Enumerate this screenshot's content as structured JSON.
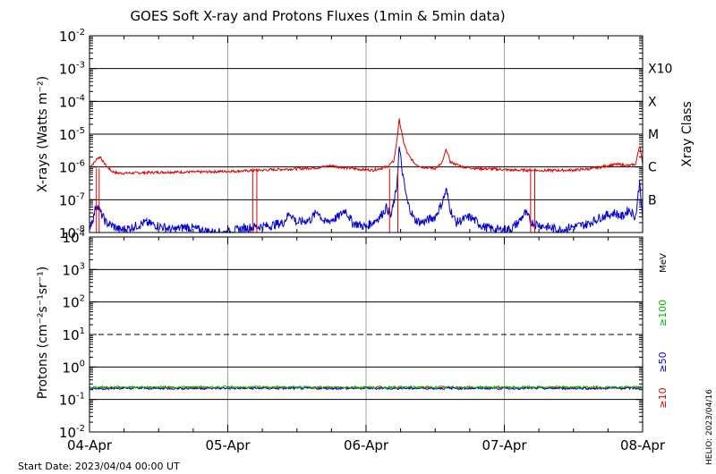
{
  "chart_data": [
    {
      "type": "line",
      "title": "GOES Soft X-ray and Protons Fluxes   (1min & 5min data)",
      "ylabel": "X-rays (Watts m⁻²)",
      "yscale": "log",
      "ylim": [
        1e-08,
        0.01
      ],
      "y_ticks": [
        {
          "base": "10",
          "exp": "-8"
        },
        {
          "base": "10",
          "exp": "-7"
        },
        {
          "base": "10",
          "exp": "-6"
        },
        {
          "base": "10",
          "exp": "-5"
        },
        {
          "base": "10",
          "exp": "-4"
        },
        {
          "base": "10",
          "exp": "-3"
        },
        {
          "base": "10",
          "exp": "-2"
        }
      ],
      "right_axis_label": "Xray Class",
      "class_labels": [
        {
          "label": "B",
          "value": 1e-07
        },
        {
          "label": "C",
          "value": 1e-06
        },
        {
          "label": "M",
          "value": 1e-05
        },
        {
          "label": "X",
          "value": 0.0001
        },
        {
          "label": "X10",
          "value": 0.001
        }
      ],
      "x_unit": "days since 04-Apr 00:00 UT",
      "series": [
        {
          "color": "#e00000",
          "points": [
            [
              0.0,
              1e-06
            ],
            [
              0.03,
              1.3e-06
            ],
            [
              0.06,
              1.9e-06
            ],
            [
              0.08,
              2e-06
            ],
            [
              0.1,
              1.4e-06
            ],
            [
              0.12,
              1.1e-06
            ],
            [
              0.14,
              9e-07
            ],
            [
              0.16,
              7.5e-07
            ],
            [
              0.2,
              6.5e-07
            ],
            [
              0.3,
              6.5e-07
            ],
            [
              0.45,
              6.8e-07
            ],
            [
              0.6,
              7e-07
            ],
            [
              0.8,
              7e-07
            ],
            [
              0.95,
              7.3e-07
            ],
            [
              1.1,
              7.5e-07
            ],
            [
              1.25,
              8e-07
            ],
            [
              1.4,
              8.5e-07
            ],
            [
              1.55,
              9e-07
            ],
            [
              1.65,
              9.5e-07
            ],
            [
              1.75,
              1.1e-06
            ],
            [
              1.8,
              1e-06
            ],
            [
              1.95,
              8.5e-07
            ],
            [
              2.05,
              8e-07
            ],
            [
              2.15,
              1e-06
            ],
            [
              2.2,
              1.5e-06
            ],
            [
              2.22,
              5e-06
            ],
            [
              2.24,
              2.8e-05
            ],
            [
              2.27,
              6e-06
            ],
            [
              2.3,
              2.5e-06
            ],
            [
              2.35,
              1.3e-06
            ],
            [
              2.4,
              1e-06
            ],
            [
              2.5,
              9e-07
            ],
            [
              2.55,
              1.3e-06
            ],
            [
              2.58,
              3.5e-06
            ],
            [
              2.61,
              1.4e-06
            ],
            [
              2.7,
              1e-06
            ],
            [
              2.8,
              9e-07
            ],
            [
              2.95,
              8.5e-07
            ],
            [
              3.05,
              8e-07
            ],
            [
              3.15,
              8e-07
            ],
            [
              3.3,
              7.8e-07
            ],
            [
              3.5,
              8e-07
            ],
            [
              3.65,
              9e-07
            ],
            [
              3.75,
              1.1e-06
            ],
            [
              3.82,
              1.2e-06
            ],
            [
              3.9,
              1.1e-06
            ],
            [
              3.95,
              1.2e-06
            ],
            [
              3.98,
              5e-06
            ],
            [
              4.0,
              1.1e-06
            ]
          ]
        },
        {
          "color": "#0000d0",
          "points": [
            [
              0.0,
              1.5e-08
            ],
            [
              0.03,
              3e-08
            ],
            [
              0.05,
              8e-08
            ],
            [
              0.08,
              4e-08
            ],
            [
              0.12,
              2e-08
            ],
            [
              0.18,
              1.5e-08
            ],
            [
              0.22,
              1.2e-08
            ],
            [
              0.3,
              1.4e-08
            ],
            [
              0.4,
              2e-08
            ],
            [
              0.5,
              1.6e-08
            ],
            [
              0.6,
              1.2e-08
            ],
            [
              0.7,
              1.5e-08
            ],
            [
              0.8,
              1.2e-08
            ],
            [
              0.9,
              1e-08
            ],
            [
              1.0,
              1e-08
            ],
            [
              1.1,
              1.3e-08
            ],
            [
              1.2,
              1.5e-08
            ],
            [
              1.3,
              1.6e-08
            ],
            [
              1.4,
              2e-08
            ],
            [
              1.45,
              4e-08
            ],
            [
              1.5,
              2e-08
            ],
            [
              1.6,
              2.5e-08
            ],
            [
              1.65,
              4.5e-08
            ],
            [
              1.7,
              2e-08
            ],
            [
              1.8,
              3e-08
            ],
            [
              1.85,
              5e-08
            ],
            [
              1.9,
              2e-08
            ],
            [
              2.0,
              1.5e-08
            ],
            [
              2.1,
              3e-08
            ],
            [
              2.15,
              6e-08
            ],
            [
              2.18,
              3e-08
            ],
            [
              2.22,
              2e-07
            ],
            [
              2.24,
              4e-06
            ],
            [
              2.27,
              4e-07
            ],
            [
              2.3,
              8e-08
            ],
            [
              2.35,
              2.5e-08
            ],
            [
              2.4,
              2e-08
            ],
            [
              2.5,
              3e-08
            ],
            [
              2.55,
              8e-08
            ],
            [
              2.58,
              2e-07
            ],
            [
              2.61,
              5e-08
            ],
            [
              2.65,
              2e-08
            ],
            [
              2.75,
              3e-08
            ],
            [
              2.85,
              1.5e-08
            ],
            [
              2.95,
              1.2e-08
            ],
            [
              3.05,
              1.3e-08
            ],
            [
              3.1,
              2e-08
            ],
            [
              3.15,
              4e-08
            ],
            [
              3.2,
              2e-08
            ],
            [
              3.3,
              1.5e-08
            ],
            [
              3.4,
              1.2e-08
            ],
            [
              3.5,
              1.5e-08
            ],
            [
              3.6,
              1.8e-08
            ],
            [
              3.7,
              3e-08
            ],
            [
              3.8,
              4e-08
            ],
            [
              3.85,
              3e-08
            ],
            [
              3.9,
              5e-08
            ],
            [
              3.95,
              3e-08
            ],
            [
              3.98,
              4e-07
            ],
            [
              4.0,
              2e-08
            ]
          ]
        }
      ],
      "dropouts": [
        {
          "x": 0.05,
          "color": "#e00000"
        },
        {
          "x": 0.07,
          "color": "#e00000"
        },
        {
          "x": 1.18,
          "color": "#e00000"
        },
        {
          "x": 1.21,
          "color": "#e00000"
        },
        {
          "x": 2.17,
          "color": "#e00000"
        },
        {
          "x": 2.23,
          "color": "#e00000"
        },
        {
          "x": 3.19,
          "color": "#e00000"
        },
        {
          "x": 3.22,
          "color": "#e00000"
        }
      ]
    },
    {
      "type": "line",
      "ylabel": "Protons (cm⁻²s⁻¹sr⁻¹)",
      "yscale": "log",
      "ylim": [
        0.01,
        10000.0
      ],
      "y_ticks": [
        {
          "base": "10",
          "exp": "-2"
        },
        {
          "base": "10",
          "exp": "-1"
        },
        {
          "base": "10",
          "exp": "0"
        },
        {
          "base": "10",
          "exp": "1"
        },
        {
          "base": "10",
          "exp": "2"
        },
        {
          "base": "10",
          "exp": "3"
        },
        {
          "base": "10",
          "exp": "4"
        }
      ],
      "threshold": {
        "value": 10,
        "style": "dashed"
      },
      "energy_unit": "MeV",
      "series": [
        {
          "name": "≥10",
          "color": "#e00000",
          "value": 0.23
        },
        {
          "name": "≥50",
          "color": "#0000d0",
          "value": 0.22
        },
        {
          "name": "≥100",
          "color": "#00c000",
          "value": 0.24
        }
      ]
    }
  ],
  "x_axis": {
    "days": 4,
    "tick_labels": [
      "04-Apr",
      "05-Apr",
      "06-Apr",
      "07-Apr",
      "08-Apr"
    ]
  },
  "footer": {
    "start_date": "Start Date: 2023/04/04 00:00 UT",
    "credit": "HELIO: 2023/04/16"
  },
  "colors": {
    "red": "#e00000",
    "blue": "#0000d0",
    "green": "#00c000",
    "grid": "#000000"
  }
}
